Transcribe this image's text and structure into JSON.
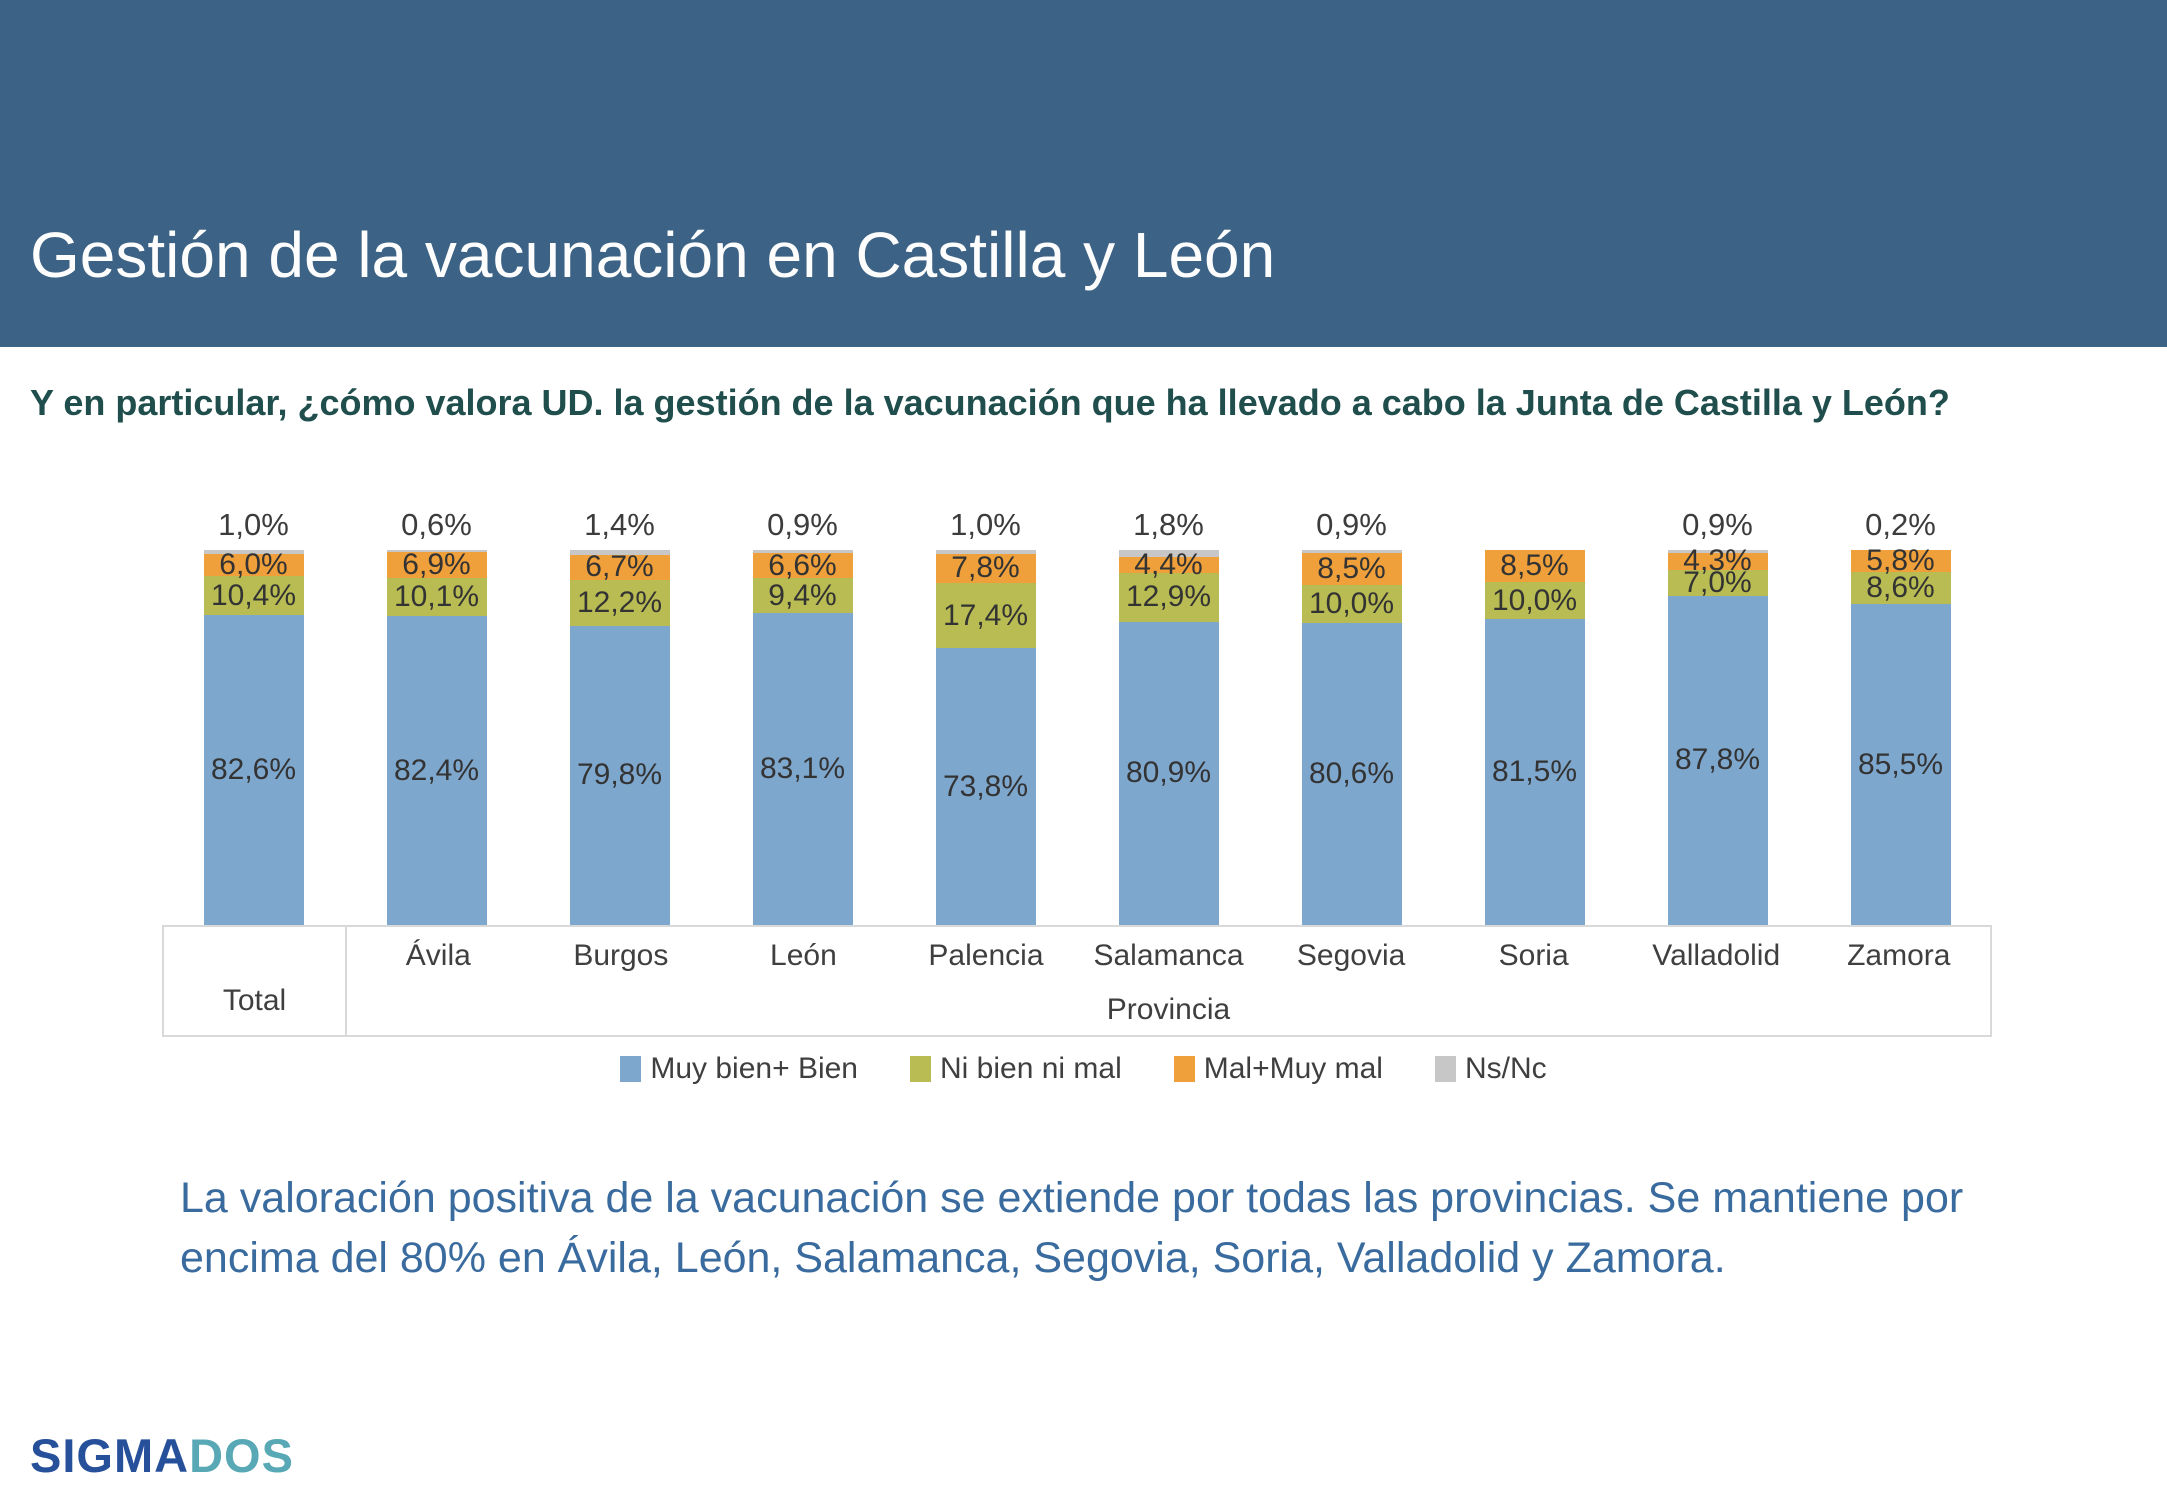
{
  "header": {
    "title": "Gestión de la vacunación en Castilla y León"
  },
  "question": {
    "text": "Y en particular, ¿cómo valora UD. la gestión de la vacunación que ha llevado a cabo la Junta de Castilla y León?"
  },
  "chart_data": {
    "type": "bar",
    "stacked": true,
    "value_unit": "%",
    "decimal_separator": ",",
    "grid": false,
    "ylim": [
      0,
      100
    ],
    "legend_position": "bottom",
    "categories": [
      "Total",
      "Ávila",
      "Burgos",
      "León",
      "Palencia",
      "Salamanca",
      "Segovia",
      "Soria",
      "Valladolid",
      "Zamora"
    ],
    "axis_group_label": "Provincia",
    "series": [
      {
        "name": "Muy bien+ Bien",
        "color": "#7ea7ce",
        "values": [
          82.6,
          82.4,
          79.8,
          83.1,
          73.8,
          80.9,
          80.6,
          81.5,
          87.8,
          85.5
        ],
        "labels": [
          "82,6%",
          "82,4%",
          "79,8%",
          "83,1%",
          "73,8%",
          "80,9%",
          "80,6%",
          "81,5%",
          "87,8%",
          "85,5%"
        ]
      },
      {
        "name": "Ni bien ni mal",
        "color": "#b9bc52",
        "values": [
          10.4,
          10.1,
          12.2,
          9.4,
          17.4,
          12.9,
          10.0,
          10.0,
          7.0,
          8.6
        ],
        "labels": [
          "10,4%",
          "10,1%",
          "12,2%",
          "9,4%",
          "17,4%",
          "12,9%",
          "10,0%",
          "10,0%",
          "7,0%",
          "8,6%"
        ]
      },
      {
        "name": "Mal+Muy mal",
        "color": "#f0a03a",
        "values": [
          6.0,
          6.9,
          6.7,
          6.6,
          7.8,
          4.4,
          8.5,
          8.5,
          4.3,
          5.8
        ],
        "labels": [
          "6,0%",
          "6,9%",
          "6,7%",
          "6,6%",
          "7,8%",
          "4,4%",
          "8,5%",
          "8,5%",
          "4,3%",
          "5,8%"
        ]
      },
      {
        "name": "Ns/Nc",
        "color": "#c7c7c7",
        "values": [
          1.0,
          0.6,
          1.4,
          0.9,
          1.0,
          1.8,
          0.9,
          0,
          0.9,
          0.2
        ],
        "labels": [
          "1,0%",
          "0,6%",
          "1,4%",
          "0,9%",
          "1,0%",
          "1,8%",
          "0,9%",
          null,
          "0,9%",
          "0,2%"
        ]
      }
    ]
  },
  "annotation": {
    "text": "La valoración positiva de la vacunación se extiende por todas las provincias. Se mantiene por encima del 80% en Ávila, León, Salamanca, Segovia, Soria, Valladolid y Zamora."
  },
  "logo": {
    "part1": "SIGMA",
    "part2": "DOS"
  },
  "colors": {
    "header_background": "#3c6285",
    "header_text": "#fdfdfd",
    "question_text": "#1f4e4d",
    "annotation_text": "#3a6b9e",
    "chart_label_text": "#333333",
    "axis_border": "#d9d9d9",
    "logo_sigma": "#27509b",
    "logo_dos": "#58a8b5"
  }
}
